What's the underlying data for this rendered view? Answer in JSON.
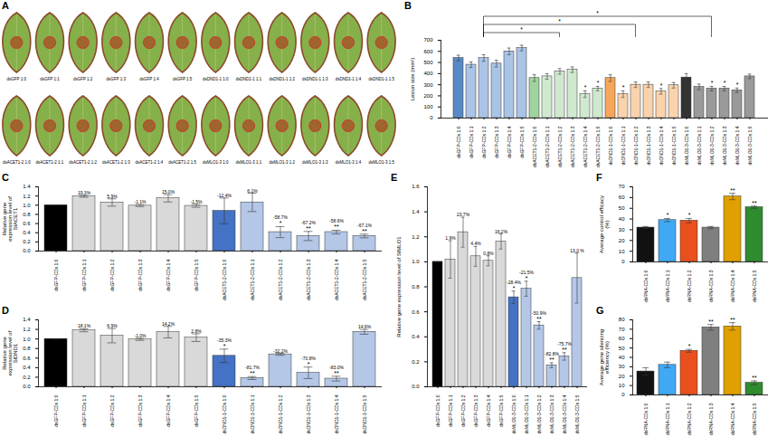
{
  "images": {
    "panel": "A",
    "labels": [
      [
        "dsGFP 1:0",
        "dsGFP 1:1",
        "dsGFP 1:2",
        "dsGFP 1:3",
        "dsGFP 1:4",
        "dsGFP 1:5",
        "dsDND1-1 1:0",
        "dsDND1-1 1:1",
        "dsDND1-1 1:2",
        "dsDND1-1 1:3",
        "dsDND1-1 1:4",
        "dsDND1-1 1:5"
      ],
      [
        "dsACET1-2 1:0",
        "dsACET1-2 1:1",
        "dsACET1-2 1:2",
        "dsACET1-2 1:3",
        "dsACET1-2 1:4",
        "dsACET1-2 1:5",
        "dsMLO1-3 1:0",
        "dsMLO1-3 1:1",
        "dsMLO1-3 1:2",
        "dsMLO1-3 1:3",
        "dsMLO1-3 1:4",
        "dsMLO1-3 1:5"
      ]
    ]
  },
  "chart_data": [
    {
      "panel": "B",
      "type": "bar",
      "ylabel": "Lesion size (mm²)",
      "categories": [
        "dsGFP-CDs 1:0",
        "dsGFP-CDs 1:1",
        "dsGFP-CDs 1:2",
        "dsGFP-CDs 1:3",
        "dsGFP-CDs 1:4",
        "dsGFP-CDs 1:5",
        "dsACET1-2-CDs 1:0",
        "dsACET1-2-CDs 1:1",
        "dsACET1-2-CDs 1:2",
        "dsACET1-2-CDs 1:3",
        "dsACET1-2-CDs 1:4",
        "dsACET1-2-CDs 1:5",
        "dsDND1-1-CDs 1:0",
        "dsDND1-1-CDs 1:1",
        "dsDND1-1-CDs 1:2",
        "dsDND1-1-CDs 1:3",
        "dsDND1-1-CDs 1:4",
        "dsDND1-1-CDs 1:5",
        "dsMLO1-3-CDs 1:0",
        "dsMLO1-3-CDs 1:1",
        "dsMLO1-3-CDs 1:2",
        "dsMLO1-3-CDs 1:3",
        "dsMLO1-3-CDs 1:4",
        "dsMLO1-3-CDs 1:5"
      ],
      "values": [
        540,
        480,
        540,
        490,
        600,
        630,
        360,
        375,
        420,
        435,
        215,
        265,
        360,
        215,
        300,
        300,
        240,
        295,
        365,
        280,
        265,
        265,
        250,
        375
      ],
      "errors": [
        25,
        25,
        30,
        30,
        30,
        25,
        30,
        25,
        25,
        25,
        30,
        20,
        30,
        30,
        25,
        25,
        25,
        25,
        35,
        25,
        20,
        20,
        20,
        20
      ],
      "significance": [
        null,
        null,
        null,
        null,
        null,
        null,
        null,
        null,
        null,
        null,
        "*",
        "*",
        null,
        "*",
        null,
        null,
        "*",
        null,
        null,
        null,
        "*",
        "*",
        "*",
        null
      ],
      "comparisons": [
        {
          "from": "dsGFP-CDs 1:2",
          "to": "dsACET1-2-CDs 1:2",
          "label": "*"
        },
        {
          "from": "dsGFP-CDs 1:2",
          "to": "dsDND1-1-CDs 1:2",
          "label": "*"
        },
        {
          "from": "dsGFP-CDs 1:2",
          "to": "dsMLO1-3-CDs 1:2",
          "label": "*"
        }
      ],
      "colors": [
        "#5a8ac6",
        "#a9c4e6",
        "#a9c4e6",
        "#a9c4e6",
        "#a9c4e6",
        "#a9c4e6",
        "#9fd49f",
        "#cfe9cf",
        "#cfe9cf",
        "#cfe9cf",
        "#cfe9cf",
        "#cfe9cf",
        "#f5a65b",
        "#fad3ad",
        "#fad3ad",
        "#fad3ad",
        "#fad3ad",
        "#fad3ad",
        "#333333",
        "#9a9a9a",
        "#9a9a9a",
        "#9a9a9a",
        "#9a9a9a",
        "#9a9a9a"
      ],
      "ylim": [
        0,
        700
      ],
      "yticks": [
        0,
        100,
        200,
        300,
        400,
        500,
        600,
        700
      ]
    },
    {
      "panel": "C",
      "type": "bar",
      "ylabel": "Relative gene expression level of SlACET1",
      "categories": [
        "dsGFP-CDs 1:0",
        "dsGFP-CDs 1:1",
        "dsGFP-CDs 1:2",
        "dsGFP-CDs 1:3",
        "dsGFP-CDs 1:4",
        "dsGFP-CDs 1:5",
        "dsACET1-2-CDs 1:0",
        "dsACET1-2-CDs 1:1",
        "dsACET1-2-CDs 1:2",
        "dsACET1-2-CDs 1:3",
        "dsACET1-2-CDs 1:4",
        "dsACET1-2-CDs 1:5"
      ],
      "values": [
        1.0,
        1.193,
        1.059,
        0.989,
        1.15,
        0.985,
        0.876,
        1.061,
        0.413,
        0.328,
        0.414,
        0.329
      ],
      "errors": [
        0,
        0.02,
        0.08,
        0.02,
        0.08,
        0.03,
        0.28,
        0.2,
        0.12,
        0.1,
        0.04,
        0.04
      ],
      "annotations": [
        null,
        "19.3%",
        "5.9%",
        "-1.1%",
        "15.0%",
        "-1.5%",
        "-12.4%",
        "6.1%",
        "-58.7%",
        "-67.2%",
        "-58.6%",
        "-67.1%"
      ],
      "significance": [
        null,
        null,
        null,
        null,
        null,
        null,
        null,
        null,
        "*",
        "**",
        "**",
        "**"
      ],
      "colors": [
        "#000000",
        "#d9d9d9",
        "#d9d9d9",
        "#d9d9d9",
        "#d9d9d9",
        "#d9d9d9",
        "#4472c4",
        "#b4c7e7",
        "#b4c7e7",
        "#b4c7e7",
        "#b4c7e7",
        "#b4c7e7"
      ],
      "ylim": [
        0,
        1.4
      ],
      "yticks": [
        0,
        0.2,
        0.4,
        0.6,
        0.8,
        1,
        1.2,
        1.4
      ]
    },
    {
      "panel": "D",
      "type": "bar",
      "ylabel": "Relative gene expression level of SlDND1",
      "categories": [
        "dsGFP-CDs 1:0",
        "dsGFP-CDs 1:1",
        "dsGFP-CDs 1:2",
        "dsGFP-CDs 1:3",
        "dsGFP-CDs 1:4",
        "dsGFP-CDs 1:5",
        "dsDND1-1-CDs 1:0",
        "dsDND1-1-CDs 1:1",
        "dsDND1-1-CDs 1:2",
        "dsDND1-1-CDs 1:3",
        "dsDND1-1-CDs 1:4",
        "dsDND1-1-CDs 1:5"
      ],
      "values": [
        1.0,
        1.181,
        1.069,
        0.99,
        1.142,
        1.028,
        0.647,
        0.183,
        0.678,
        0.292,
        0.17,
        1.149
      ],
      "errors": [
        0,
        0.03,
        0.15,
        0.02,
        0.12,
        0.08,
        0.14,
        0.03,
        0.02,
        0.12,
        0.05,
        0.05
      ],
      "annotations": [
        null,
        "18.1%",
        "6.9%",
        "-1.0%",
        "14.2%",
        "2.8%",
        "-35.3%",
        "-81.7%",
        "-32.2%",
        "-70.8%",
        "-83.0%",
        "14.9%"
      ],
      "significance": [
        null,
        null,
        null,
        null,
        null,
        null,
        "*",
        "**",
        null,
        "*",
        "**",
        null
      ],
      "colors": [
        "#000000",
        "#d9d9d9",
        "#d9d9d9",
        "#d9d9d9",
        "#d9d9d9",
        "#d9d9d9",
        "#4472c4",
        "#b4c7e7",
        "#b4c7e7",
        "#b4c7e7",
        "#b4c7e7",
        "#b4c7e7"
      ],
      "ylim": [
        0,
        1.4
      ],
      "yticks": [
        0,
        0.2,
        0.4,
        0.6,
        0.8,
        1,
        1.2,
        1.4
      ]
    },
    {
      "panel": "E",
      "type": "bar",
      "ylabel": "Relative gene expression level of SlMLO1",
      "categories": [
        "dsGFP-CDs 1:0",
        "dsGFP-CDs 1:1",
        "dsGFP-CDs 1:2",
        "dsGFP-CDs 1:3",
        "dsGFP-CDs 1:4",
        "dsGFP-CDs 1:5",
        "dsMLO1-3-CDs 1:0",
        "dsMLO1-3-CDs 1:1",
        "dsMLO1-3-CDs 1:2",
        "dsMLO1-3-CDs 1:3",
        "dsMLO1-3-CDs 1:4",
        "dsMLO1-3-CDs 1:5"
      ],
      "values": [
        1.0,
        1.019,
        1.237,
        1.044,
        1.008,
        1.162,
        0.716,
        0.785,
        0.491,
        0.172,
        0.243,
        0.87
      ],
      "errors": [
        0,
        0.15,
        0.12,
        0.08,
        0.04,
        0.06,
        0.05,
        0.06,
        0.03,
        0.02,
        0.03,
        0.2
      ],
      "annotations": [
        null,
        "1.9%",
        "23.7%",
        "4.4%",
        "0.8%",
        "16.2%",
        "-28.4%",
        "-21.5%",
        "-50.9%",
        "-82.8%",
        "-75.7%",
        "13.0 %"
      ],
      "significance": [
        null,
        null,
        null,
        null,
        null,
        null,
        "*",
        "*",
        "**",
        "**",
        "**",
        null
      ],
      "colors": [
        "#000000",
        "#d9d9d9",
        "#d9d9d9",
        "#d9d9d9",
        "#d9d9d9",
        "#d9d9d9",
        "#4472c4",
        "#b4c7e7",
        "#b4c7e7",
        "#b4c7e7",
        "#b4c7e7",
        "#b4c7e7"
      ],
      "ylim": [
        0,
        1.6
      ],
      "yticks": [
        0,
        0.2,
        0.4,
        0.6,
        0.8,
        1,
        1.2,
        1.4,
        1.6
      ]
    },
    {
      "panel": "F",
      "type": "bar",
      "ylabel": "Average control efficacy (%)",
      "categories": [
        "dsRNA-CDs 1:0",
        "dsRNA-CDs 1:1",
        "dsRNA-CDs 1:2",
        "dsRNA-CDs 1:3",
        "dsRNA-CDs 1:4",
        "dsRNA-CDs 1:5"
      ],
      "values": [
        32,
        39,
        38.5,
        32,
        61,
        51
      ],
      "errors": [
        1,
        1.5,
        2,
        1,
        3,
        1
      ],
      "significance": [
        null,
        "*",
        "*",
        null,
        "**",
        "**"
      ],
      "colors": [
        "#111111",
        "#3fa9f5",
        "#e8501e",
        "#7f7f7f",
        "#e0a000",
        "#2e8b2e"
      ],
      "ylim": [
        0,
        70
      ],
      "yticks": [
        0,
        10,
        20,
        30,
        40,
        50,
        60,
        70
      ]
    },
    {
      "panel": "G",
      "type": "bar",
      "ylabel": "Average gene silencing efficiency (%)",
      "categories": [
        "dsRNA-CDs 1:0",
        "dsRNA-CDs 1:1",
        "dsRNA-CDs 1:2",
        "dsRNA-CDs 1:3",
        "dsRNA-CDs 1:4",
        "dsRNA-CDs 1:5"
      ],
      "values": [
        25,
        32,
        47,
        72,
        73,
        13
      ],
      "errors": [
        4,
        3,
        1.5,
        3,
        4,
        2
      ],
      "significance": [
        null,
        null,
        "*",
        "**",
        "**",
        "**"
      ],
      "colors": [
        "#111111",
        "#3fa9f5",
        "#e8501e",
        "#7f7f7f",
        "#e0a000",
        "#2e8b2e"
      ],
      "ylim": [
        0,
        80
      ],
      "yticks": [
        0,
        10,
        20,
        30,
        40,
        50,
        60,
        70,
        80
      ]
    }
  ]
}
